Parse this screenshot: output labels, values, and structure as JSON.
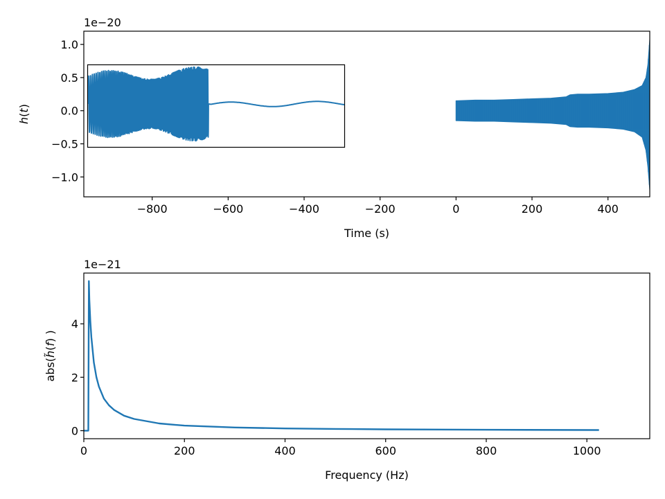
{
  "colors": {
    "series": "#1f77b4",
    "axes": "#000000",
    "background": "#ffffff"
  },
  "chart_data": [
    {
      "type": "line",
      "xlabel": "Time (s)",
      "ylabel_math": {
        "base": "h",
        "arg": "t"
      },
      "offset_text": "1e−20",
      "xlim": [
        -980,
        510
      ],
      "ylim": [
        -1.3,
        1.2
      ],
      "xticks": [
        -800,
        -600,
        -400,
        -200,
        0,
        200,
        400
      ],
      "xtick_labels": [
        "−800",
        "−600",
        "−400",
        "−200",
        "0",
        "200",
        "400"
      ],
      "yticks": [
        -1.0,
        -0.5,
        0.0,
        0.5,
        1.0
      ],
      "ytick_labels": [
        "−1.0",
        "−0.5",
        "0.0",
        "0.5",
        "1.0"
      ],
      "grid": false,
      "series": [
        {
          "kind": "envelope-band",
          "x": [
            0,
            50,
            100,
            150,
            200,
            250,
            290,
            300,
            320,
            350,
            400,
            440,
            470,
            490,
            500,
            505,
            510
          ],
          "upper": [
            0.15,
            0.16,
            0.16,
            0.17,
            0.18,
            0.19,
            0.21,
            0.24,
            0.25,
            0.25,
            0.26,
            0.28,
            0.32,
            0.38,
            0.5,
            0.7,
            1.08
          ],
          "lower": [
            -0.15,
            -0.16,
            -0.16,
            -0.17,
            -0.18,
            -0.19,
            -0.21,
            -0.24,
            -0.25,
            -0.25,
            -0.26,
            -0.28,
            -0.32,
            -0.4,
            -0.6,
            -0.85,
            -1.2
          ]
        }
      ],
      "inset": {
        "description_of_content": "zoom of merger and ringdown",
        "waveform": {
          "oscillation_x_range": [
            0,
            0.47
          ],
          "amplitude_start": 0.8,
          "amplitude_end": 0.92,
          "tail_x_range": [
            0.48,
            1.0
          ]
        }
      }
    },
    {
      "type": "line",
      "xlabel": "Frequency (Hz)",
      "ylabel_math": {
        "prefix": "abs(",
        "base": "h̃",
        "arg": "f",
        "suffix": " )"
      },
      "offset_text": "1e−21",
      "xlim": [
        0,
        1125
      ],
      "ylim": [
        -0.3,
        5.9
      ],
      "xticks": [
        0,
        200,
        400,
        600,
        800,
        1000
      ],
      "xtick_labels": [
        "0",
        "200",
        "400",
        "600",
        "800",
        "1000"
      ],
      "yticks": [
        0,
        2,
        4
      ],
      "ytick_labels": [
        "0",
        "2",
        "4"
      ],
      "grid": false,
      "series": [
        {
          "kind": "line",
          "x": [
            0,
            9,
            10,
            11,
            13,
            15,
            20,
            25,
            30,
            40,
            50,
            60,
            80,
            100,
            150,
            200,
            300,
            400,
            500,
            600,
            800,
            1024
          ],
          "y": [
            0,
            0,
            5.6,
            4.9,
            4.1,
            3.5,
            2.55,
            2.0,
            1.65,
            1.2,
            0.95,
            0.78,
            0.56,
            0.44,
            0.27,
            0.19,
            0.12,
            0.085,
            0.065,
            0.05,
            0.035,
            0.025
          ]
        }
      ]
    }
  ]
}
